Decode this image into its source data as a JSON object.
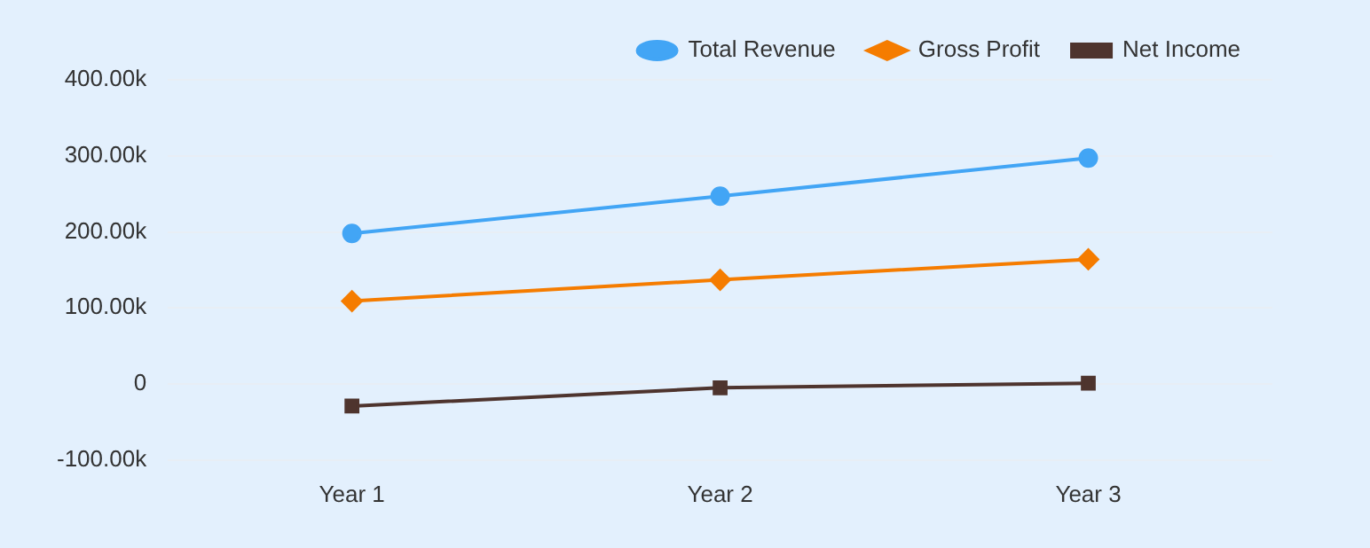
{
  "chart_data": {
    "type": "line",
    "categories": [
      "Year 1",
      "Year 2",
      "Year 3"
    ],
    "series": [
      {
        "name": "Total Revenue",
        "color": "#42a5f5",
        "marker": "circle",
        "values": [
          198000,
          247000,
          297000
        ]
      },
      {
        "name": "Gross Profit",
        "color": "#f57c00",
        "marker": "diamond",
        "values": [
          109000,
          137000,
          164000
        ]
      },
      {
        "name": "Net Income",
        "color": "#4e342e",
        "marker": "square",
        "values": [
          -29000,
          -5000,
          1000
        ]
      }
    ],
    "ylim": [
      -100000,
      400000
    ],
    "yticks": [
      {
        "value": -100000,
        "label": "-100.00k"
      },
      0,
      {
        "value": 100000,
        "label": "100.00k"
      },
      {
        "value": 200000,
        "label": "200.00k"
      },
      {
        "value": 300000,
        "label": "300.00k"
      },
      {
        "value": 400000,
        "label": "400.00k"
      }
    ],
    "grid": "y",
    "legend": "top right"
  }
}
